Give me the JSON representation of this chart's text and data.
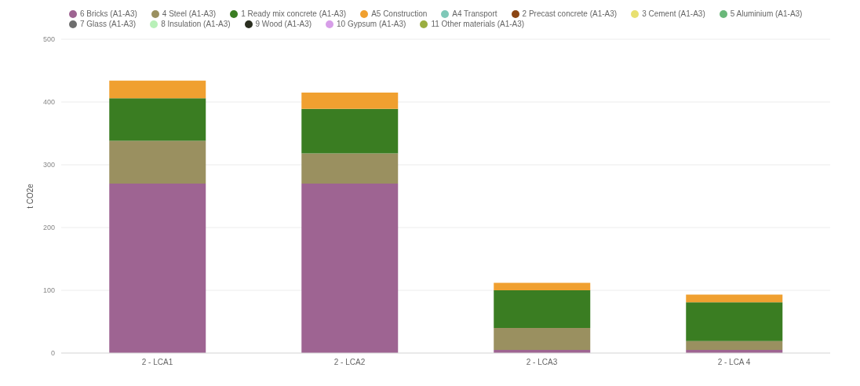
{
  "chart_data": {
    "type": "bar",
    "stacked": true,
    "ylabel": "t CO2e",
    "categories": [
      "2 - LCA1",
      "2 - LCA2",
      "2 - LCA3",
      "2 - LCA 4"
    ],
    "ylim": [
      0,
      500
    ],
    "yticks": [
      0,
      100,
      200,
      300,
      400,
      500
    ],
    "grid": "y",
    "legend": "top",
    "series": [
      {
        "name": "6 Bricks (A1-A3)",
        "color": "#9e6492",
        "values": [
          270,
          270,
          5,
          5
        ]
      },
      {
        "name": "4 Steel (A1-A3)",
        "color": "#9a9060",
        "values": [
          68,
          48,
          35,
          14
        ]
      },
      {
        "name": "1 Ready mix concrete (A1-A3)",
        "color": "#3a7d22",
        "values": [
          68,
          71,
          60,
          62
        ]
      },
      {
        "name": "A5 Construction",
        "color": "#f0a030",
        "values": [
          28,
          26,
          12,
          12
        ]
      },
      {
        "name": "A4 Transport",
        "color": "#7fc8b8",
        "values": [
          0,
          0,
          0,
          0
        ]
      },
      {
        "name": "2 Precast concrete (A1-A3)",
        "color": "#8b4513",
        "values": [
          0,
          0,
          0,
          0
        ]
      },
      {
        "name": "3 Cement (A1-A3)",
        "color": "#e8e070",
        "values": [
          0,
          0,
          0,
          0
        ]
      },
      {
        "name": "5 Aluminium (A1-A3)",
        "color": "#6ab87a",
        "values": [
          0,
          0,
          0,
          0
        ]
      },
      {
        "name": "7 Glass (A1-A3)",
        "color": "#6e6e6e",
        "values": [
          0,
          0,
          0,
          0
        ]
      },
      {
        "name": "8 Insulation (A1-A3)",
        "color": "#b8f0b8",
        "values": [
          0,
          0,
          0,
          0
        ]
      },
      {
        "name": "9 Wood (A1-A3)",
        "color": "#2a2e20",
        "values": [
          0,
          0,
          0,
          0
        ]
      },
      {
        "name": "10 Gypsum (A1-A3)",
        "color": "#d79ee8",
        "values": [
          0,
          0,
          0,
          0
        ]
      },
      {
        "name": "11 Other materials (A1-A3)",
        "color": "#9aae40",
        "values": [
          0,
          0,
          0,
          0
        ]
      }
    ]
  }
}
